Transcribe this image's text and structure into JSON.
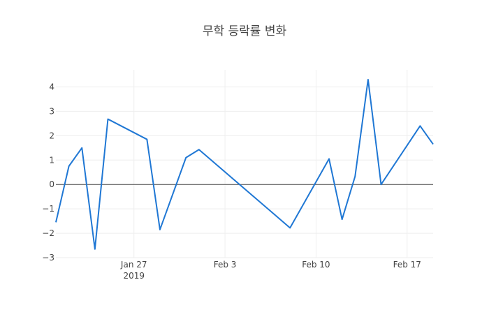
{
  "chart_data": {
    "type": "line",
    "title": "무학 등락률 변화",
    "xlabel": "",
    "ylabel": "",
    "x_range": [
      "2019-01-21",
      "2019-02-19"
    ],
    "ylim": [
      -3,
      4.7
    ],
    "grid": true,
    "y_ticks": [
      -3,
      -2,
      -1,
      0,
      1,
      2,
      3,
      4
    ],
    "y_tick_labels": [
      "−3",
      "−2",
      "−1",
      "0",
      "1",
      "2",
      "3",
      "4"
    ],
    "x_ticks": [
      {
        "date": "2019-01-27",
        "label": "Jan 27",
        "sublabel": "2019"
      },
      {
        "date": "2019-02-03",
        "label": "Feb 3",
        "sublabel": ""
      },
      {
        "date": "2019-02-10",
        "label": "Feb 10",
        "sublabel": ""
      },
      {
        "date": "2019-02-17",
        "label": "Feb 17",
        "sublabel": ""
      }
    ],
    "series": [
      {
        "color": "#1f77d4",
        "x": [
          "2019-01-21",
          "2019-01-22",
          "2019-01-23",
          "2019-01-24",
          "2019-01-25",
          "2019-01-28",
          "2019-01-29",
          "2019-01-31",
          "2019-02-01",
          "2019-02-08",
          "2019-02-11",
          "2019-02-12",
          "2019-02-13",
          "2019-02-14",
          "2019-02-15",
          "2019-02-18",
          "2019-02-19"
        ],
        "y": [
          -1.55,
          0.75,
          1.5,
          -2.65,
          2.68,
          1.85,
          -1.85,
          1.1,
          1.43,
          -1.78,
          1.05,
          -1.43,
          0.33,
          4.3,
          0.0,
          2.4,
          1.65
        ]
      }
    ]
  }
}
